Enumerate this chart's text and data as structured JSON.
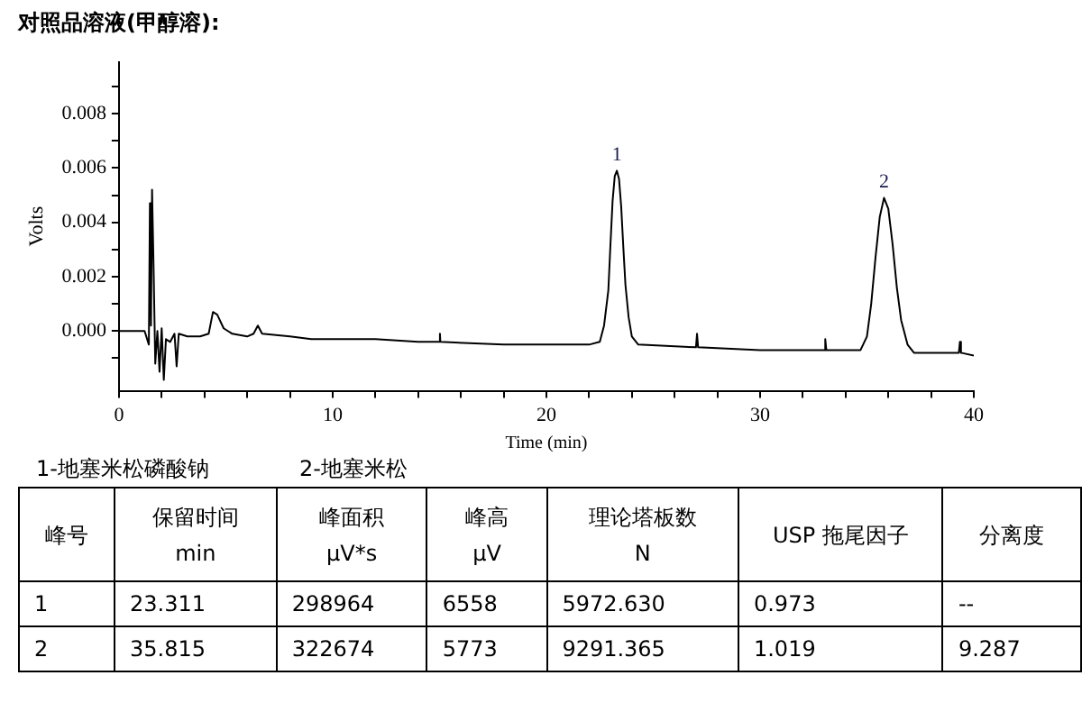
{
  "chart_data": {
    "type": "line",
    "title": "对照品溶液(甲醇溶):",
    "xlabel": "Time (min)",
    "ylabel": "Volts",
    "series": [
      {
        "color": "#000000",
        "x": [
          0,
          1.2,
          1.4,
          1.45,
          1.5,
          1.55,
          1.62,
          1.7,
          1.8,
          1.9,
          2.0,
          2.1,
          2.2,
          2.4,
          2.6,
          2.7,
          2.8,
          3.2,
          3.8,
          4.2,
          4.4,
          4.6,
          4.9,
          5.3,
          6.0,
          6.3,
          6.5,
          6.7,
          8,
          9,
          10,
          12,
          14,
          15,
          15.02,
          15.04,
          18,
          20,
          22,
          22.5,
          22.7,
          22.9,
          23.0,
          23.1,
          23.2,
          23.3,
          23.4,
          23.5,
          23.6,
          23.7,
          23.85,
          24.0,
          24.3,
          27,
          27.05,
          27.1,
          30,
          33,
          33.05,
          33.1,
          34.7,
          35.0,
          35.2,
          35.4,
          35.6,
          35.8,
          36.0,
          36.2,
          36.4,
          36.6,
          36.9,
          37.2,
          39.3,
          39.35,
          39.4,
          40
        ],
        "values": [
          0,
          0,
          -0.0005,
          0.0047,
          0.0002,
          0.0052,
          0.0024,
          -0.0012,
          0,
          -0.0015,
          0.0001,
          -0.0018,
          -0.0003,
          -0.0004,
          -0.0001,
          -0.0013,
          -0.0001,
          -0.0002,
          -0.0002,
          -0.0001,
          0.0007,
          0.0006,
          0.0001,
          -0.0001,
          -0.0002,
          -0.0001,
          0.0002,
          -0.0001,
          -0.0002,
          -0.0003,
          -0.0003,
          -0.0003,
          -0.0004,
          -0.0004,
          -0.0001,
          -0.0004,
          -0.0005,
          -0.0005,
          -0.0005,
          -0.0004,
          0.0002,
          0.0015,
          0.0032,
          0.0048,
          0.0057,
          0.0059,
          0.0056,
          0.0046,
          0.0031,
          0.0017,
          0.0005,
          -0.0002,
          -0.0005,
          -0.0006,
          -0.0001,
          -0.0006,
          -0.0007,
          -0.0007,
          -0.0003,
          -0.0007,
          -0.0007,
          -0.0002,
          0.001,
          0.0027,
          0.0042,
          0.0049,
          0.0045,
          0.0032,
          0.0016,
          0.0004,
          -0.0005,
          -0.0008,
          -0.0008,
          -0.0004,
          -0.0008,
          -0.0009
        ]
      }
    ],
    "xlim": [
      0,
      40
    ],
    "xticks": [
      0,
      {
        "value": 2,
        "label": null
      },
      {
        "value": 4,
        "label": null
      },
      {
        "value": 6,
        "label": null
      },
      {
        "value": 8,
        "label": null
      },
      10,
      {
        "value": 12,
        "label": null
      },
      {
        "value": 14,
        "label": null
      },
      {
        "value": 16,
        "label": null
      },
      {
        "value": 18,
        "label": null
      },
      20,
      {
        "value": 22,
        "label": null
      },
      {
        "value": 24,
        "label": null
      },
      {
        "value": 26,
        "label": null
      },
      {
        "value": 28,
        "label": null
      },
      30,
      {
        "value": 32,
        "label": null
      },
      {
        "value": 34,
        "label": null
      },
      {
        "value": 36,
        "label": null
      },
      {
        "value": 38,
        "label": null
      },
      40
    ],
    "ylim": [
      -0.0022,
      0.0099
    ],
    "yticks": [
      {
        "value": -0.001,
        "label": null
      },
      {
        "value": 0,
        "label": "0.000"
      },
      {
        "value": 0.001,
        "label": null
      },
      {
        "value": 0.002,
        "label": "0.002"
      },
      {
        "value": 0.003,
        "label": null
      },
      {
        "value": 0.004,
        "label": "0.004"
      },
      {
        "value": 0.005,
        "label": null
      },
      {
        "value": 0.006,
        "label": "0.006"
      },
      {
        "value": 0.007,
        "label": null
      },
      {
        "value": 0.008,
        "label": "0.008"
      },
      {
        "value": 0.009,
        "label": null
      }
    ],
    "grid": false,
    "legend": false,
    "marker": "none",
    "line_style": "solid",
    "annotations": [
      {
        "text": "1",
        "x": 23.3,
        "y": 0.0059
      },
      {
        "text": "2",
        "x": 35.8,
        "y": 0.0049
      },
      "1-地塞米松磷酸钠",
      "2-地塞米松",
      "峰号",
      "保留时间\nmin",
      "峰面积\nμV*s",
      "峰高\nμV",
      "理论塔板数\nN",
      "USP 拖尾因子",
      "分离度",
      "1",
      "23.311",
      "298964",
      "6558",
      "5972.630",
      "0.973",
      "--",
      "2",
      "35.815",
      "322674",
      "5773",
      "9291.365",
      "1.019",
      "9.287"
    ]
  }
}
